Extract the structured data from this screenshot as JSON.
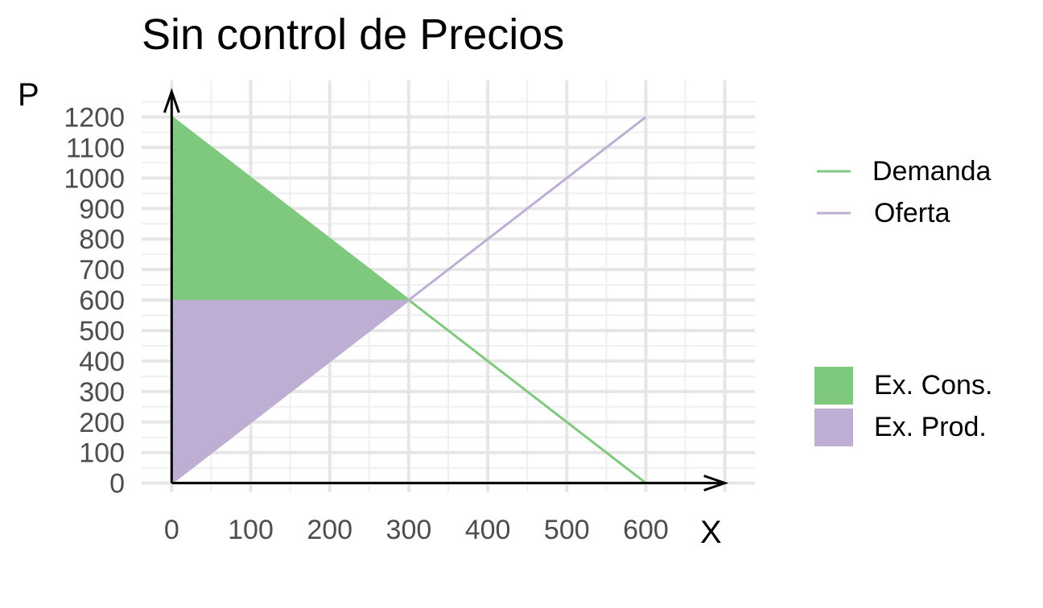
{
  "chart_data": {
    "type": "line",
    "title": "Sin control de Precios",
    "xlabel": "X",
    "ylabel": "P",
    "xlim": [
      -38,
      738
    ],
    "ylim": [
      -30,
      1320
    ],
    "x_ticks": [
      0,
      100,
      200,
      300,
      400,
      500,
      600
    ],
    "y_ticks": [
      0,
      100,
      200,
      300,
      400,
      500,
      600,
      700,
      800,
      900,
      1000,
      1100,
      1200
    ],
    "grid": true,
    "legend_position": "right",
    "series": [
      {
        "name": "Demanda",
        "color": "#7fc97f",
        "points": [
          [
            0,
            1200
          ],
          [
            600,
            0
          ]
        ]
      },
      {
        "name": "Oferta",
        "color": "#beaed4",
        "points": [
          [
            0,
            0
          ],
          [
            600,
            1200
          ]
        ]
      }
    ],
    "areas": [
      {
        "name": "Ex. Cons.",
        "color": "#7fc97f",
        "polygon": [
          [
            0,
            1200
          ],
          [
            300,
            600
          ],
          [
            0,
            600
          ]
        ]
      },
      {
        "name": "Ex. Prod.",
        "color": "#beaed4",
        "polygon": [
          [
            0,
            600
          ],
          [
            300,
            600
          ],
          [
            0,
            0
          ]
        ]
      }
    ],
    "axis_arrows": true
  }
}
